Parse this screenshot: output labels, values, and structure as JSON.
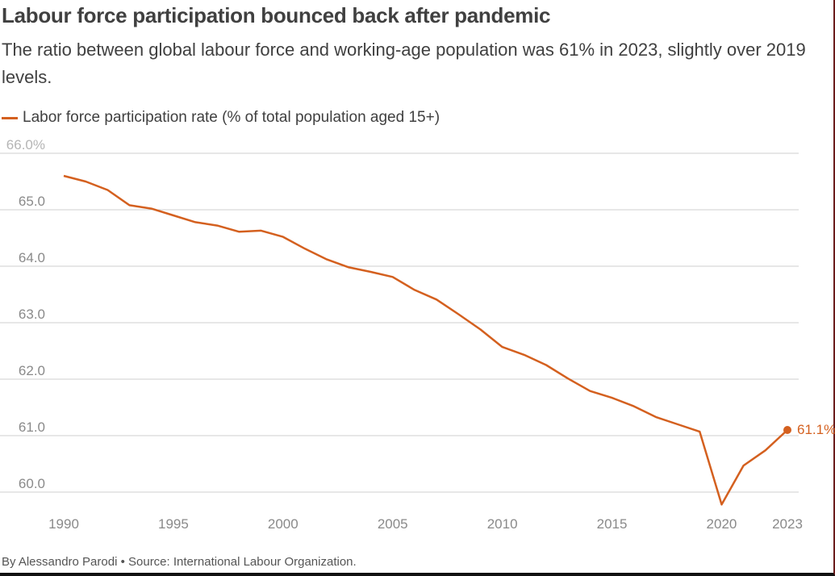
{
  "header": {
    "title": "Labour force participation bounced back after pandemic",
    "subtitle": "The ratio between global labour force and working-age population was 61% in 2023, slightly over 2019 levels."
  },
  "footer": {
    "credit": "By Alessandro Parodi • Source: International Labour Organization."
  },
  "colors": {
    "line": "#d4601f",
    "grid": "#cfcfcf",
    "tick": "#8a8a8a"
  },
  "chart_data": {
    "type": "line",
    "x": [
      1990,
      1991,
      1992,
      1993,
      1994,
      1995,
      1996,
      1997,
      1998,
      1999,
      2000,
      2001,
      2002,
      2003,
      2004,
      2005,
      2006,
      2007,
      2008,
      2009,
      2010,
      2011,
      2012,
      2013,
      2014,
      2015,
      2016,
      2017,
      2018,
      2019,
      2020,
      2021,
      2022,
      2023
    ],
    "series": [
      {
        "name": "Labor force participation rate (% of total population aged 15+)",
        "values": [
          65.6,
          65.5,
          65.35,
          65.08,
          65.02,
          64.9,
          64.78,
          64.72,
          64.61,
          64.63,
          64.52,
          64.31,
          64.12,
          63.98,
          63.9,
          63.81,
          63.58,
          63.41,
          63.15,
          62.88,
          62.57,
          62.43,
          62.25,
          62.01,
          61.79,
          61.67,
          61.52,
          61.33,
          61.2,
          61.07,
          59.78,
          60.47,
          60.74,
          61.1
        ]
      }
    ],
    "end_label": "61.1%",
    "ylim": [
      59.8,
      66.0
    ],
    "yticks": [
      60,
      61,
      62,
      63,
      64,
      65,
      66
    ],
    "ytick_labels": [
      "60.0",
      "61.0",
      "62.0",
      "63.0",
      "64.0",
      "65.0",
      "66.0%"
    ],
    "xticks": [
      1990,
      1995,
      2000,
      2005,
      2010,
      2015,
      2020,
      2023
    ],
    "xtick_labels": [
      "1990",
      "1995",
      "2000",
      "2005",
      "2010",
      "2015",
      "2020",
      "2023"
    ],
    "grid": true,
    "legend": "top-left"
  }
}
